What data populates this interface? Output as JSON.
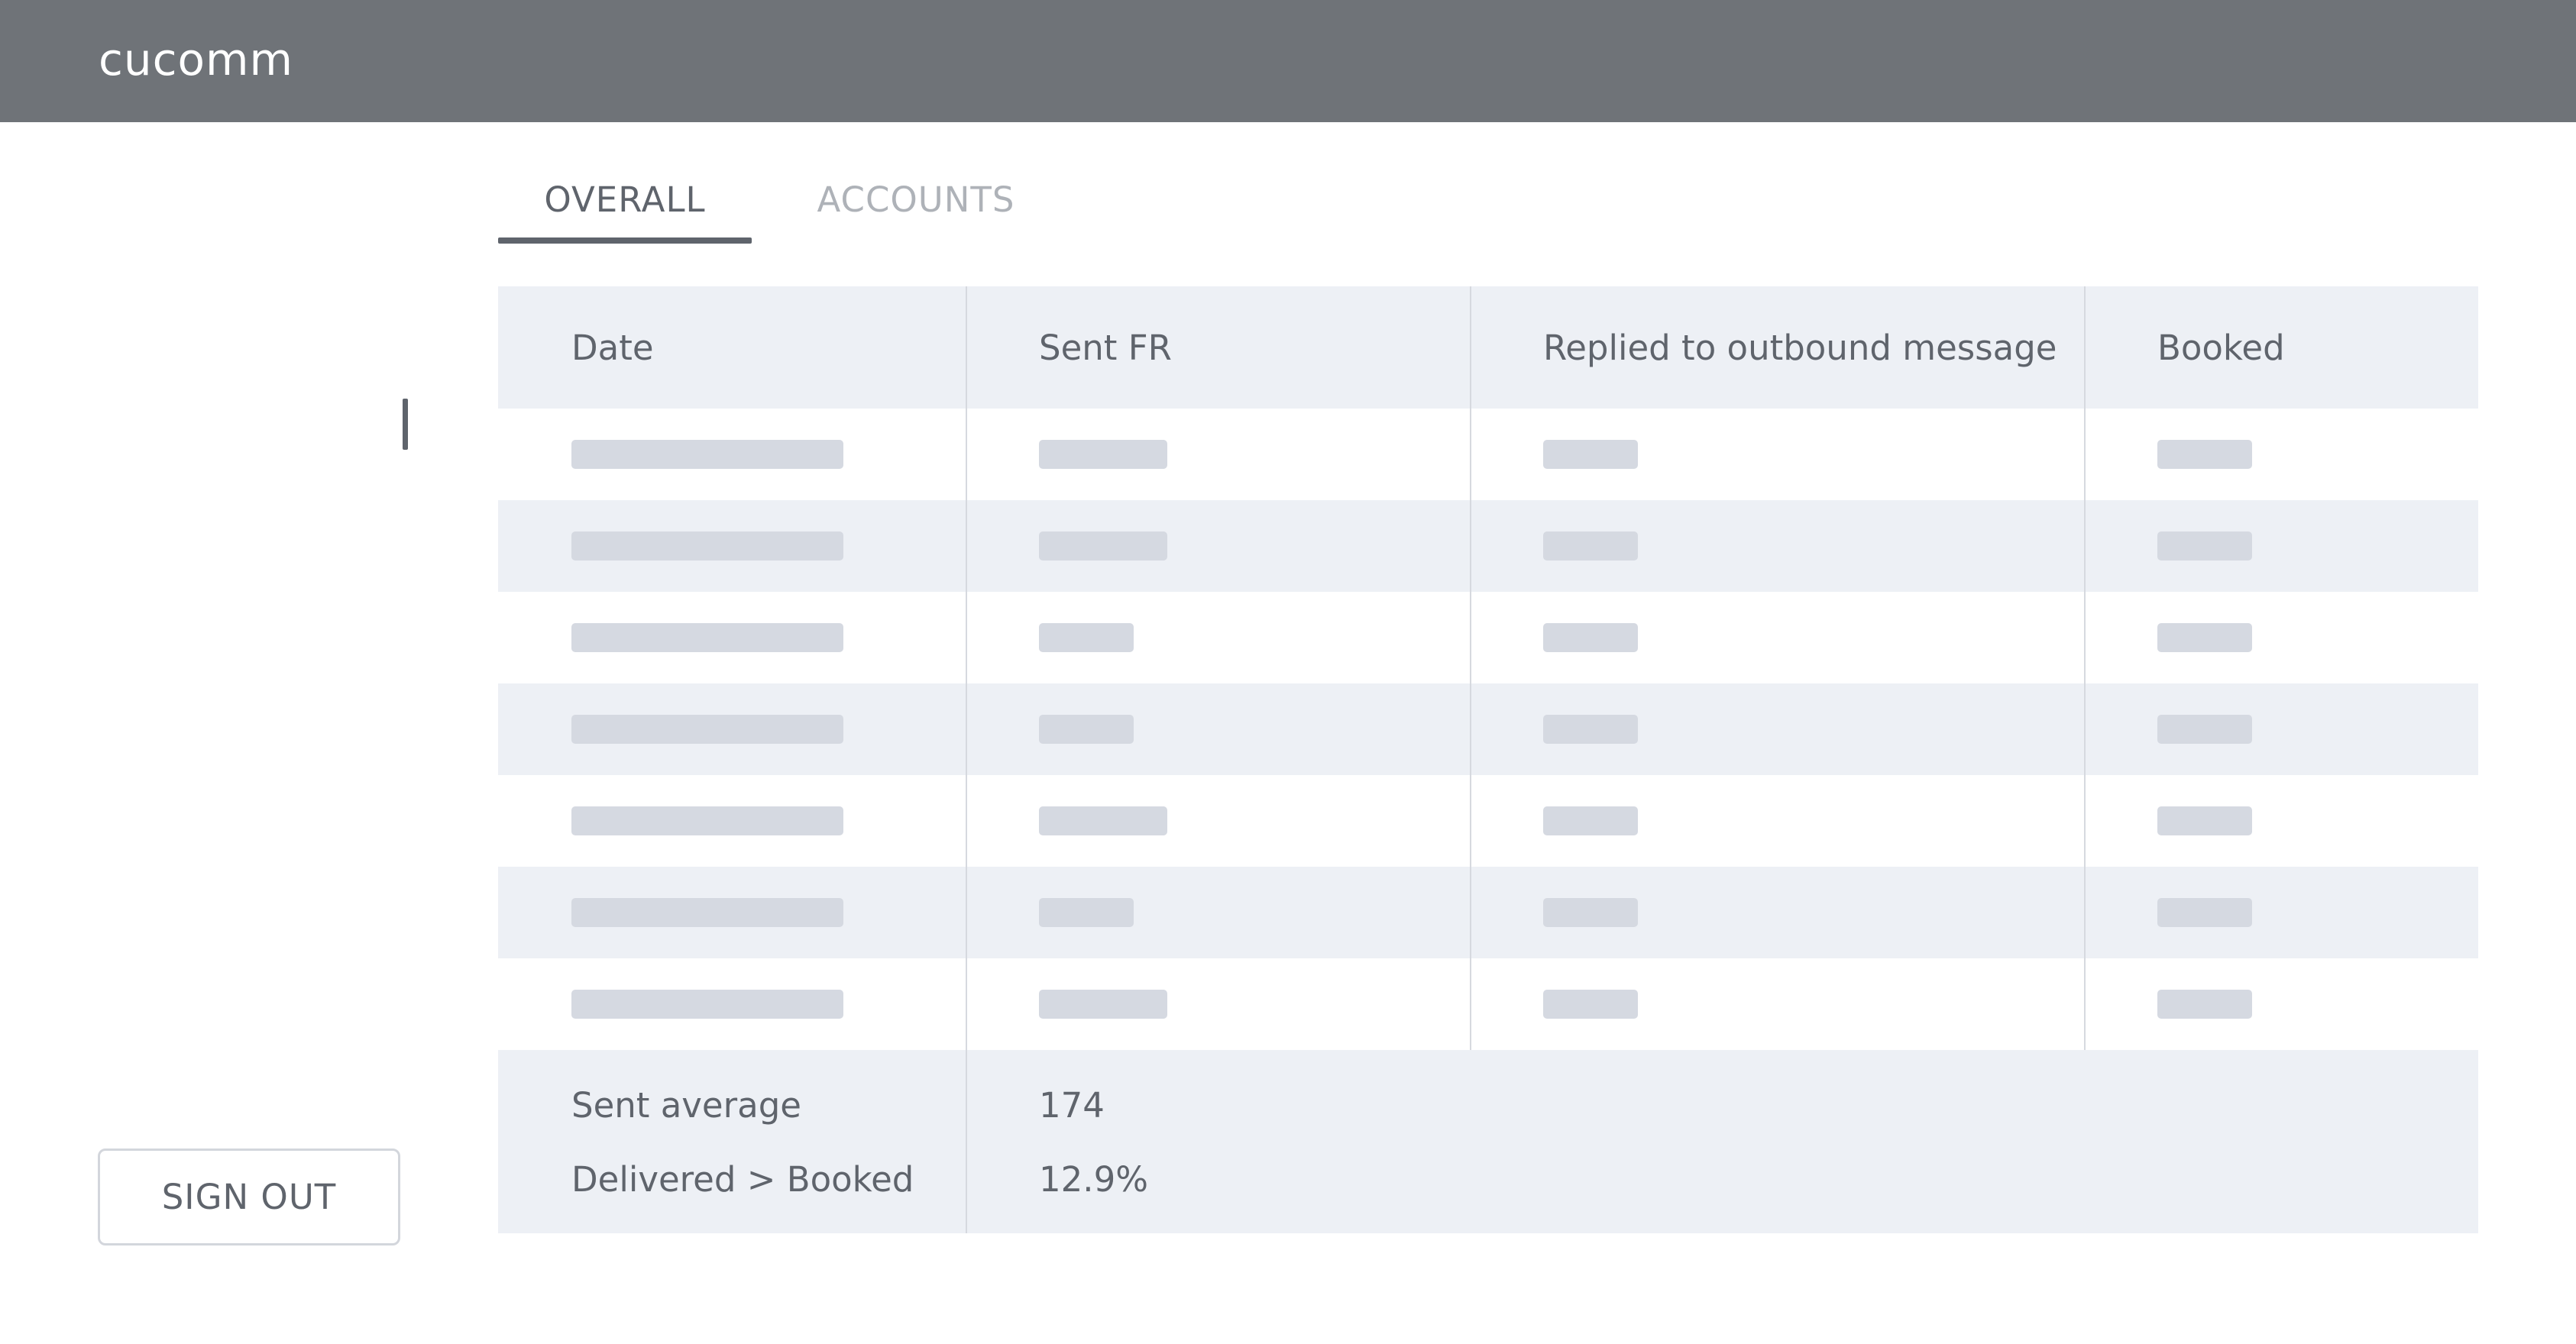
{
  "app": {
    "brand": "cucomm"
  },
  "tabs": [
    {
      "label": "OVERALL",
      "active": true
    },
    {
      "label": "ACCOUNTS",
      "active": false
    }
  ],
  "table": {
    "headers": [
      "Date",
      "Sent FR",
      "Replied to outbound message",
      "Booked"
    ],
    "loading": true,
    "skeleton_rows": 7
  },
  "summary": [
    {
      "label": "Sent average",
      "value": "174"
    },
    {
      "label": "Delivered > Booked",
      "value": "12.9%"
    }
  ],
  "sidebar": {
    "signout_label": "SIGN OUT"
  },
  "colors": {
    "topbar": "#6f7378",
    "row_alt": "#edf0f5",
    "skeleton": "#d5d9e1",
    "text": "#5f646c",
    "tab_inactive": "#aeb2b8"
  }
}
